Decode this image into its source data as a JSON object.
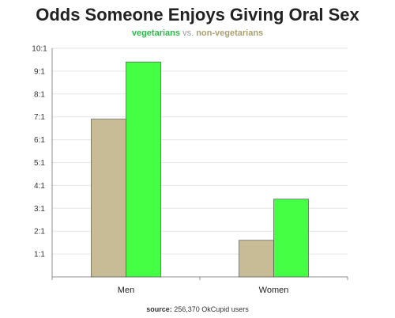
{
  "chart_data": {
    "type": "bar",
    "title": "Odds Someone Enjoys Giving Oral Sex",
    "subtitle": {
      "vegetarians": "vegetarians",
      "vs": "vs.",
      "non_vegetarians": "non-vegetarians"
    },
    "categories": [
      "Men",
      "Women"
    ],
    "series": [
      {
        "name": "non-vegetarians",
        "color": "#c8bc96",
        "values": [
          6.9,
          1.6
        ]
      },
      {
        "name": "vegetarians",
        "color": "#44ff44",
        "values": [
          9.4,
          3.4
        ]
      }
    ],
    "ylim": [
      0,
      10
    ],
    "yticks": [
      "1:1",
      "2:1",
      "3:1",
      "4:1",
      "5:1",
      "6:1",
      "7:1",
      "8:1",
      "9:1",
      "10:1"
    ],
    "grid": true,
    "source": {
      "label": "source:",
      "text": "256,370 OkCupid users"
    }
  }
}
